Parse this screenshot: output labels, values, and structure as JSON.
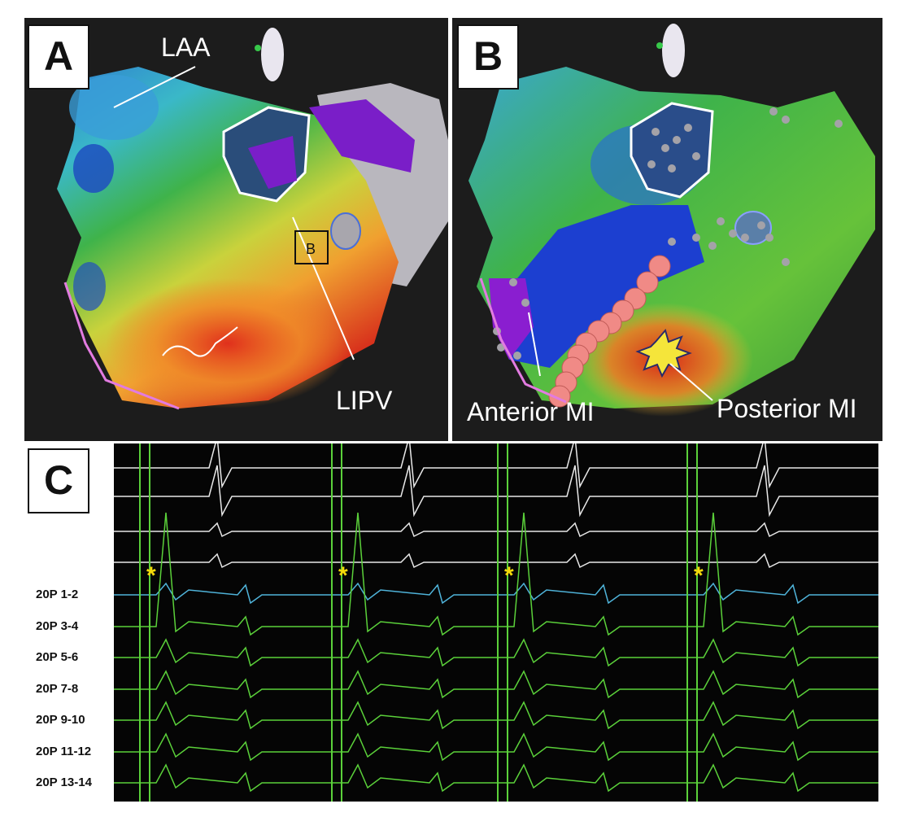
{
  "panels": {
    "a": {
      "letter": "A",
      "labels": {
        "laa": "LAA",
        "lipv": "LIPV",
        "inset": "B"
      }
    },
    "b": {
      "letter": "B",
      "labels": {
        "anterior": "Anterior MI",
        "posterior": "Posterior MI"
      }
    },
    "c": {
      "letter": "C",
      "channels": [
        "20P 1-2",
        "20P 3-4",
        "20P 5-6",
        "20P 7-8",
        "20P 9-10",
        "20P 11-12",
        "20P 13-14"
      ],
      "marker": "*"
    }
  },
  "colors": {
    "background": "#1c1c1c",
    "surface_trace": "#e8e8e8",
    "blue_trace": "#4fb3d9",
    "green_trace": "#5bd13a",
    "marker": "#f5d90a",
    "ablation": "#f08a86"
  }
}
